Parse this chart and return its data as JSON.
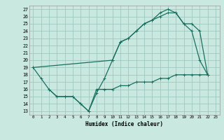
{
  "xlabel": "Humidex (Indice chaleur)",
  "bg_color": "#c8e8e0",
  "grid_color": "#a0c8c0",
  "line_color": "#1a7060",
  "xlim": [
    -0.5,
    23.5
  ],
  "ylim": [
    12.5,
    27.5
  ],
  "xticks": [
    0,
    1,
    2,
    3,
    4,
    5,
    6,
    7,
    8,
    9,
    10,
    11,
    12,
    13,
    14,
    15,
    16,
    17,
    18,
    19,
    20,
    21,
    22,
    23
  ],
  "yticks": [
    13,
    14,
    15,
    16,
    17,
    18,
    19,
    20,
    21,
    22,
    23,
    24,
    25,
    26,
    27
  ],
  "line1_x": [
    0,
    1,
    2,
    3,
    4,
    5,
    6,
    7,
    8,
    9,
    10,
    11,
    12,
    13,
    14,
    15,
    16,
    17,
    18,
    19,
    20,
    21,
    22
  ],
  "line1_y": [
    19,
    17.5,
    16,
    15,
    15,
    15,
    14,
    13,
    15.5,
    17.5,
    20,
    22.5,
    23,
    24,
    25,
    25.5,
    26.5,
    27,
    26.5,
    25,
    24,
    20,
    18
  ],
  "line2_x": [
    0,
    10,
    11,
    12,
    13,
    14,
    15,
    16,
    17,
    18,
    19,
    20,
    21,
    22
  ],
  "line2_y": [
    19,
    20,
    22.5,
    23,
    24,
    25,
    25.5,
    26,
    26.5,
    26.5,
    25,
    25,
    24,
    18
  ],
  "line3_x": [
    2,
    3,
    4,
    5,
    6,
    7,
    8,
    9,
    10,
    11,
    12,
    13,
    14,
    15,
    16,
    17,
    18,
    19,
    20,
    21,
    22
  ],
  "line3_y": [
    16,
    15,
    15,
    15,
    14,
    13,
    16,
    16,
    16,
    16.5,
    16.5,
    17,
    17,
    17,
    17.5,
    17.5,
    18,
    18,
    18,
    18,
    18
  ]
}
